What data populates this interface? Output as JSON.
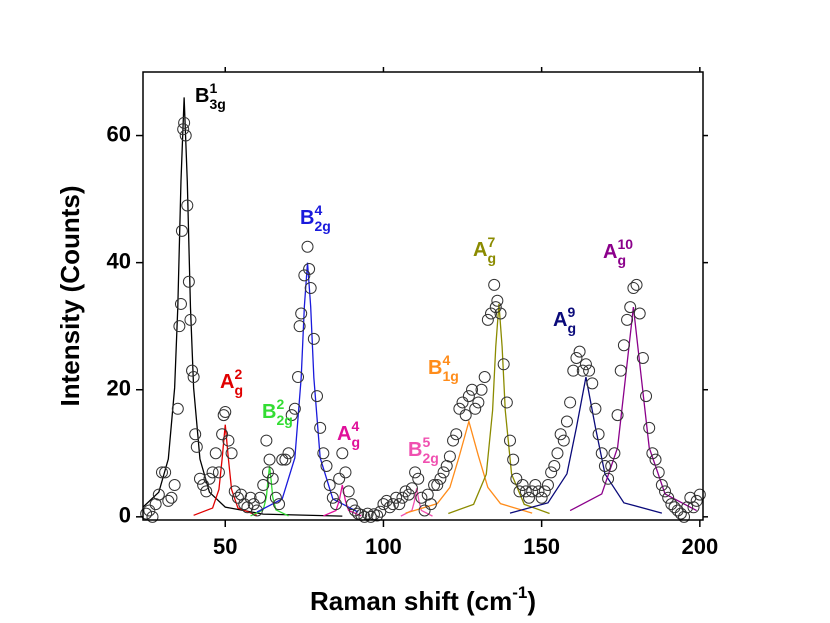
{
  "chart_data": {
    "type": "scatter",
    "x_label": {
      "text": "Raman shift (cm",
      "sup": "-1",
      "tail": ")"
    },
    "y_label": "Intensity (Counts)",
    "xlim": [
      24,
      201
    ],
    "ylim": [
      -0.5,
      70
    ],
    "xticks": [
      50,
      100,
      150,
      200
    ],
    "yticks": [
      0,
      20,
      40,
      60
    ],
    "series": [
      {
        "type": "line",
        "name": "B",
        "sup": "1",
        "sub": "3g",
        "color": "#000000",
        "x": [
          24,
          29,
          32,
          34,
          35,
          36,
          37,
          38,
          39,
          40,
          42,
          45,
          50,
          62,
          87
        ],
        "values": [
          1.53,
          3.88,
          9.1,
          20.3,
          33,
          52.8,
          66,
          52.8,
          33,
          20.3,
          9.1,
          3.88,
          1.53,
          0.42,
          0.11
        ]
      },
      {
        "type": "line",
        "name": "A",
        "sup": "2",
        "sub": "g",
        "color": "#e00000",
        "x": [
          40,
          46,
          48,
          49,
          50,
          51,
          52,
          54,
          60
        ],
        "values": [
          0.24,
          1.38,
          4.3,
          9.1,
          14.5,
          9.1,
          4.3,
          1.38,
          0.24
        ]
      },
      {
        "type": "line",
        "name": "B",
        "sup": "2",
        "sub": "2g",
        "color": "#33dd33",
        "x": [
          58,
          62,
          63,
          63.5,
          64,
          64.5,
          65,
          66,
          70
        ],
        "values": [
          0.14,
          1.1,
          3.12,
          5.75,
          8,
          5.75,
          3.12,
          1.1,
          0.14
        ]
      },
      {
        "type": "line",
        "name": "B",
        "sup": "4",
        "sub": "2g",
        "color": "#1a1adc",
        "x": [
          60,
          68,
          72,
          74,
          75,
          76,
          77,
          78,
          80,
          84,
          92
        ],
        "values": [
          0.74,
          2.82,
          9.28,
          21.9,
          33.1,
          40,
          33.1,
          21.9,
          9.28,
          2.82,
          0.74
        ]
      },
      {
        "type": "line",
        "name": "A",
        "sup": "4",
        "sub": "g",
        "color": "#e0109a",
        "x": [
          81,
          85,
          86,
          87,
          88,
          89,
          93
        ],
        "values": [
          0.14,
          1,
          2.5,
          5,
          2.5,
          1,
          0.14
        ]
      },
      {
        "type": "line",
        "name": "B",
        "sup": "5",
        "sub": "2g",
        "color": "#f050b0",
        "x": [
          105.5,
          109,
          109.75,
          110.5,
          111.25,
          112,
          115.5
        ],
        "values": [
          0.11,
          1,
          2.39,
          4.5,
          2.39,
          1,
          0.11
        ]
      },
      {
        "type": "line",
        "name": "B",
        "sup": "4",
        "sub": "1g",
        "color": "#ff8c1a",
        "x": [
          107,
          117,
          121,
          124,
          127,
          130,
          133,
          137,
          147
        ],
        "values": [
          0.58,
          2.07,
          4.62,
          9.6,
          15,
          9.6,
          4.62,
          2.07,
          0.58
        ]
      },
      {
        "type": "line",
        "name": "A",
        "sup": "7",
        "sub": "g",
        "color": "#8b8b00",
        "x": [
          120.5,
          128.5,
          132.5,
          134.5,
          135.5,
          136.5,
          137.5,
          138.5,
          140.5,
          144.5,
          152.5
        ],
        "values": [
          0.52,
          1.97,
          6.7,
          16.75,
          26.8,
          33.5,
          26.8,
          16.75,
          6.7,
          1.97,
          0.52
        ]
      },
      {
        "type": "line",
        "name": "A",
        "sup": "9",
        "sub": "g",
        "color": "#0a0a7a",
        "x": [
          140,
          152,
          158,
          161,
          164,
          167,
          170,
          176,
          188
        ],
        "values": [
          0.59,
          2.2,
          6.77,
          14.08,
          22,
          14.08,
          6.77,
          2.2,
          0.59
        ]
      },
      {
        "type": "line",
        "name": "A",
        "sup": "10",
        "sub": "g",
        "color": "#8b008b",
        "x": [
          159,
          169,
          174,
          176.5,
          179,
          181.5,
          184,
          189,
          199
        ],
        "values": [
          0.98,
          3.6,
          10.9,
          21.9,
          33,
          21.9,
          10.9,
          3.6,
          0.98
        ]
      },
      {
        "type": "scatter",
        "color": "#333333",
        "x": [
          25,
          26,
          27,
          28,
          29,
          30,
          31,
          32,
          33,
          34,
          35,
          35.5,
          36,
          36.3,
          36.7,
          37,
          37.5,
          38,
          38.5,
          39,
          39.5,
          40,
          40.5,
          41,
          42,
          43,
          44,
          45,
          46,
          47,
          48,
          49,
          49.5,
          50,
          51,
          52,
          53,
          54,
          55,
          56,
          57,
          58,
          59,
          60,
          61,
          62,
          63,
          63.5,
          64,
          65,
          66,
          67,
          68,
          69,
          70,
          71,
          72,
          73,
          73.5,
          74,
          75,
          76,
          76.5,
          77,
          78,
          79,
          80,
          81,
          82,
          83,
          84,
          85,
          86,
          87,
          88,
          89,
          90,
          91,
          92,
          93,
          94,
          95,
          96,
          97,
          98,
          99,
          100,
          101,
          102,
          103,
          104,
          105,
          106,
          107,
          108,
          109,
          110,
          111,
          112,
          113,
          114,
          115,
          116,
          117,
          118,
          119,
          120,
          121,
          122,
          123,
          124,
          125,
          126,
          127,
          128,
          129,
          130,
          131,
          132,
          133,
          134,
          135,
          135.5,
          136,
          137,
          138,
          139,
          140,
          141,
          142,
          143,
          144,
          145,
          146,
          147,
          148,
          149,
          150,
          151,
          152,
          153,
          154,
          155,
          156,
          157,
          158,
          159,
          160,
          161,
          162,
          163,
          164,
          165,
          166,
          167,
          168,
          169,
          170,
          171,
          172,
          173,
          174,
          175,
          176,
          177,
          178,
          179,
          180,
          181,
          182,
          183,
          184,
          185,
          186,
          187,
          188,
          189,
          190,
          191,
          192,
          193,
          194,
          195,
          196,
          197,
          198,
          199,
          200
        ],
        "values": [
          0.5,
          1,
          0,
          2,
          3.5,
          7,
          7,
          2.5,
          3,
          5,
          17,
          30,
          33.5,
          45,
          61,
          62,
          60,
          49,
          37,
          31,
          23,
          22,
          13,
          11,
          6,
          5,
          4,
          6,
          7,
          10,
          7,
          13,
          16,
          16.5,
          12,
          10,
          4,
          3,
          3.5,
          2,
          1.5,
          3,
          2,
          1,
          3,
          5,
          12,
          7,
          9,
          6,
          3,
          2,
          9,
          9,
          10,
          16,
          17,
          22,
          30,
          32,
          38,
          42.5,
          39,
          36,
          28,
          19,
          14,
          10,
          8,
          5,
          3,
          2,
          6,
          10,
          7,
          4,
          2,
          1,
          0.5,
          0.3,
          0,
          0.5,
          0,
          0.4,
          0.2,
          0.8,
          2,
          2.5,
          1.5,
          2,
          3,
          2,
          3,
          4,
          3.5,
          4.5,
          7,
          6,
          3,
          1,
          3.5,
          2,
          5,
          5,
          6,
          7,
          8,
          9.5,
          12,
          13,
          17,
          18,
          16,
          19,
          20,
          17,
          18,
          20,
          22,
          31,
          32,
          36.5,
          33,
          34,
          32,
          24,
          18,
          12,
          9,
          6,
          4,
          5,
          4,
          3,
          4,
          5,
          4,
          3,
          4,
          5,
          7,
          8,
          10,
          13,
          12,
          15,
          18,
          23,
          25,
          26,
          23,
          24,
          23,
          21,
          17,
          13,
          10,
          8,
          6,
          8,
          10,
          16,
          23,
          27,
          31,
          33,
          36,
          36.5,
          32,
          25,
          19,
          14,
          10,
          9,
          7,
          5,
          4,
          3,
          2,
          1.5,
          1,
          0.5,
          0,
          1.5,
          3,
          1.5,
          2.5,
          3.5
        ]
      }
    ]
  }
}
